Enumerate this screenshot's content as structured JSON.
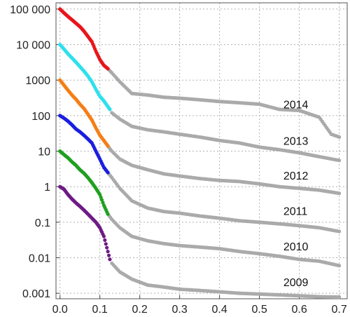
{
  "chart_data": {
    "type": "scatter",
    "x_scale": "linear",
    "y_scale": "log",
    "xlim": [
      -0.01,
      0.72
    ],
    "ylim": [
      0.0007,
      150000
    ],
    "grid": true,
    "x_ticks": [
      "0.0",
      "0.1",
      "0.2",
      "0.3",
      "0.4",
      "0.5",
      "0.6",
      "0.7"
    ],
    "y_ticks": [
      "0.001",
      "0.01",
      "0.1",
      "1",
      "10",
      "100",
      "1000",
      "10 000",
      "100 000"
    ],
    "highlight_color": "#aaaaaa",
    "series": [
      {
        "label": "2014",
        "color": "#e8151b",
        "points": [
          [
            0.0,
            100000
          ],
          [
            0.01,
            78000
          ],
          [
            0.02,
            62000
          ],
          [
            0.03,
            50000
          ],
          [
            0.04,
            40000
          ],
          [
            0.05,
            32000
          ],
          [
            0.06,
            24000
          ],
          [
            0.07,
            17000
          ],
          [
            0.08,
            12000
          ],
          [
            0.09,
            6500
          ],
          [
            0.1,
            3800
          ],
          [
            0.11,
            2600
          ],
          [
            0.12,
            2100
          ]
        ],
        "gray_points": [
          [
            0.13,
            1600
          ],
          [
            0.15,
            900
          ],
          [
            0.18,
            420
          ],
          [
            0.22,
            380
          ],
          [
            0.26,
            330
          ],
          [
            0.3,
            310
          ],
          [
            0.35,
            280
          ],
          [
            0.4,
            250
          ],
          [
            0.45,
            230
          ],
          [
            0.5,
            210
          ],
          [
            0.55,
            150
          ],
          [
            0.6,
            140
          ],
          [
            0.65,
            90
          ],
          [
            0.68,
            30
          ],
          [
            0.7,
            25
          ]
        ]
      },
      {
        "label": "2013",
        "color": "#2ee0ec",
        "points": [
          [
            0.0,
            10000
          ],
          [
            0.01,
            7500
          ],
          [
            0.02,
            5500
          ],
          [
            0.03,
            4200
          ],
          [
            0.04,
            3200
          ],
          [
            0.05,
            2400
          ],
          [
            0.06,
            1800
          ],
          [
            0.07,
            1300
          ],
          [
            0.08,
            900
          ],
          [
            0.09,
            550
          ],
          [
            0.1,
            350
          ],
          [
            0.11,
            260
          ],
          [
            0.12,
            180
          ],
          [
            0.125,
            150
          ]
        ],
        "gray_points": [
          [
            0.13,
            120
          ],
          [
            0.15,
            80
          ],
          [
            0.18,
            50
          ],
          [
            0.22,
            40
          ],
          [
            0.26,
            35
          ],
          [
            0.3,
            30
          ],
          [
            0.35,
            25
          ],
          [
            0.4,
            20
          ],
          [
            0.45,
            17
          ],
          [
            0.5,
            13
          ],
          [
            0.55,
            11
          ],
          [
            0.6,
            9
          ],
          [
            0.65,
            7
          ],
          [
            0.7,
            5.5
          ]
        ]
      },
      {
        "label": "2012",
        "color": "#f47f16",
        "points": [
          [
            0.0,
            1000
          ],
          [
            0.01,
            720
          ],
          [
            0.02,
            520
          ],
          [
            0.03,
            380
          ],
          [
            0.04,
            290
          ],
          [
            0.05,
            210
          ],
          [
            0.06,
            160
          ],
          [
            0.07,
            110
          ],
          [
            0.08,
            75
          ],
          [
            0.09,
            45
          ],
          [
            0.1,
            28
          ],
          [
            0.11,
            20
          ],
          [
            0.12,
            14
          ]
        ],
        "gray_points": [
          [
            0.13,
            10
          ],
          [
            0.15,
            6
          ],
          [
            0.18,
            4
          ],
          [
            0.22,
            3
          ],
          [
            0.26,
            2.3
          ],
          [
            0.3,
            2
          ],
          [
            0.35,
            1.7
          ],
          [
            0.4,
            1.5
          ],
          [
            0.45,
            1.4
          ],
          [
            0.5,
            1.2
          ],
          [
            0.55,
            1.0
          ],
          [
            0.6,
            0.9
          ],
          [
            0.65,
            0.8
          ],
          [
            0.7,
            0.65
          ]
        ]
      },
      {
        "label": "2011",
        "color": "#1a1ee0",
        "points": [
          [
            0.0,
            100
          ],
          [
            0.01,
            85
          ],
          [
            0.02,
            70
          ],
          [
            0.03,
            55
          ],
          [
            0.04,
            42
          ],
          [
            0.05,
            35
          ],
          [
            0.06,
            28
          ],
          [
            0.07,
            22
          ],
          [
            0.08,
            17
          ],
          [
            0.09,
            10
          ],
          [
            0.1,
            6
          ],
          [
            0.11,
            3.5
          ],
          [
            0.12,
            2.5
          ]
        ],
        "gray_points": [
          [
            0.13,
            1.8
          ],
          [
            0.15,
            0.9
          ],
          [
            0.18,
            0.4
          ],
          [
            0.22,
            0.25
          ],
          [
            0.26,
            0.2
          ],
          [
            0.3,
            0.18
          ],
          [
            0.35,
            0.15
          ],
          [
            0.4,
            0.13
          ],
          [
            0.45,
            0.11
          ],
          [
            0.5,
            0.1
          ],
          [
            0.55,
            0.09
          ],
          [
            0.6,
            0.08
          ],
          [
            0.65,
            0.07
          ],
          [
            0.7,
            0.055
          ]
        ]
      },
      {
        "label": "2010",
        "color": "#1ea01e",
        "points": [
          [
            0.0,
            10
          ],
          [
            0.01,
            8
          ],
          [
            0.02,
            6.5
          ],
          [
            0.03,
            5
          ],
          [
            0.04,
            4
          ],
          [
            0.05,
            3
          ],
          [
            0.06,
            2.4
          ],
          [
            0.07,
            1.8
          ],
          [
            0.08,
            1.3
          ],
          [
            0.09,
            0.9
          ],
          [
            0.1,
            0.6
          ],
          [
            0.11,
            0.3
          ],
          [
            0.12,
            0.17
          ]
        ],
        "gray_points": [
          [
            0.13,
            0.12
          ],
          [
            0.15,
            0.07
          ],
          [
            0.18,
            0.04
          ],
          [
            0.22,
            0.03
          ],
          [
            0.26,
            0.025
          ],
          [
            0.3,
            0.022
          ],
          [
            0.35,
            0.02
          ],
          [
            0.4,
            0.018
          ],
          [
            0.45,
            0.015
          ],
          [
            0.5,
            0.013
          ],
          [
            0.55,
            0.011
          ],
          [
            0.6,
            0.009
          ],
          [
            0.65,
            0.008
          ],
          [
            0.7,
            0.006
          ]
        ]
      },
      {
        "label": "2009",
        "color": "#6e1a86",
        "points": [
          [
            0.0,
            1
          ],
          [
            0.01,
            0.85
          ],
          [
            0.02,
            0.6
          ],
          [
            0.03,
            0.45
          ],
          [
            0.04,
            0.35
          ],
          [
            0.05,
            0.28
          ],
          [
            0.06,
            0.22
          ],
          [
            0.07,
            0.17
          ],
          [
            0.08,
            0.13
          ],
          [
            0.09,
            0.1
          ],
          [
            0.1,
            0.07
          ],
          [
            0.11,
            0.04
          ],
          [
            0.12,
            0.015
          ],
          [
            0.125,
            0.009
          ]
        ],
        "gray_points": [
          [
            0.13,
            0.007
          ],
          [
            0.15,
            0.004
          ],
          [
            0.18,
            0.0025
          ],
          [
            0.22,
            0.0017
          ],
          [
            0.26,
            0.0015
          ],
          [
            0.3,
            0.0013
          ],
          [
            0.35,
            0.0012
          ],
          [
            0.4,
            0.0011
          ],
          [
            0.45,
            0.001
          ],
          [
            0.5,
            0.00095
          ],
          [
            0.55,
            0.0009
          ],
          [
            0.6,
            0.00085
          ],
          [
            0.65,
            0.0008
          ],
          [
            0.7,
            0.00078
          ]
        ]
      }
    ],
    "label_positions": [
      {
        "text": "2014",
        "x": 0.56,
        "y": 160
      },
      {
        "text": "2013",
        "x": 0.56,
        "y": 15
      },
      {
        "text": "2012",
        "x": 0.56,
        "y": 1.6
      },
      {
        "text": "2011",
        "x": 0.56,
        "y": 0.16
      },
      {
        "text": "2010",
        "x": 0.56,
        "y": 0.016
      },
      {
        "text": "2009",
        "x": 0.56,
        "y": 0.0016
      }
    ]
  }
}
